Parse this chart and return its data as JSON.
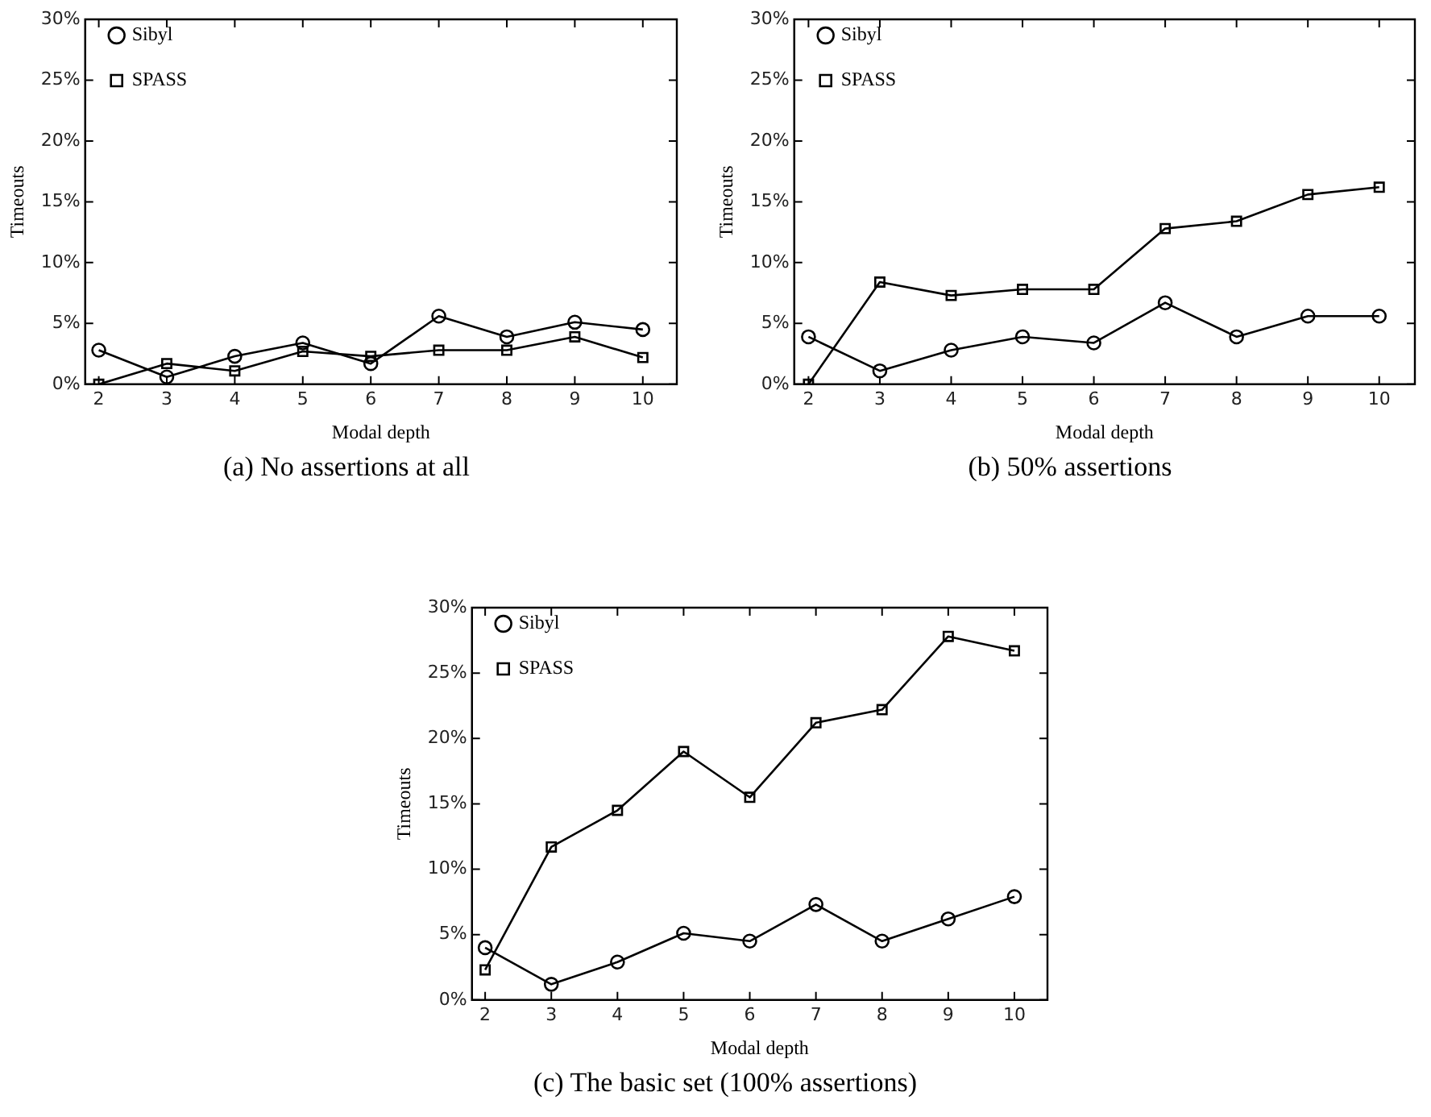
{
  "chart_data": [
    {
      "type": "line",
      "title": "(a) No assertions at all",
      "xlabel": "Modal depth",
      "ylabel": "Timeouts",
      "x": [
        2,
        3,
        4,
        5,
        6,
        7,
        8,
        9,
        10
      ],
      "series": [
        {
          "name": "Sibyl",
          "color": "#000000",
          "marker": "circle",
          "values": [
            2.8,
            0.6,
            2.3,
            3.4,
            1.7,
            5.6,
            3.9,
            5.1,
            4.5
          ]
        },
        {
          "name": "SPASS",
          "color": "#000000",
          "marker": "square",
          "values": [
            0,
            1.7,
            1.1,
            2.7,
            2.3,
            2.8,
            2.8,
            3.9,
            2.2
          ]
        }
      ],
      "xlim": [
        1.8,
        10.5
      ],
      "xticks": [
        2,
        3,
        4,
        5,
        6,
        7,
        8,
        9,
        10
      ],
      "ylim": [
        0,
        30
      ],
      "yticks": [
        {
          "value": 0,
          "label": "0%"
        },
        {
          "value": 5,
          "label": "5%"
        },
        {
          "value": 10,
          "label": "10%"
        },
        {
          "value": 15,
          "label": "15%"
        },
        {
          "value": 20,
          "label": "20%"
        },
        {
          "value": 25,
          "label": "25%"
        },
        {
          "value": 30,
          "label": "30%"
        }
      ],
      "grid": false,
      "legend": "top left"
    },
    {
      "type": "line",
      "title": "(b) 50% assertions",
      "xlabel": "Modal depth",
      "ylabel": "Timeouts",
      "x": [
        2,
        3,
        4,
        5,
        6,
        7,
        8,
        9,
        10
      ],
      "series": [
        {
          "name": "Sibyl",
          "color": "#000000",
          "marker": "circle",
          "values": [
            3.9,
            1.1,
            2.8,
            3.9,
            3.4,
            6.7,
            3.9,
            5.6,
            5.6
          ]
        },
        {
          "name": "SPASS",
          "color": "#000000",
          "marker": "square",
          "values": [
            0,
            8.4,
            7.3,
            7.8,
            7.8,
            12.8,
            13.4,
            15.6,
            16.2
          ]
        }
      ],
      "xlim": [
        1.8,
        10.5
      ],
      "xticks": [
        2,
        3,
        4,
        5,
        6,
        7,
        8,
        9,
        10
      ],
      "ylim": [
        0,
        30
      ],
      "yticks": [
        {
          "value": 0,
          "label": "0%"
        },
        {
          "value": 5,
          "label": "5%"
        },
        {
          "value": 10,
          "label": "10%"
        },
        {
          "value": 15,
          "label": "15%"
        },
        {
          "value": 20,
          "label": "20%"
        },
        {
          "value": 25,
          "label": "25%"
        },
        {
          "value": 30,
          "label": "30%"
        }
      ],
      "grid": false,
      "legend": "top left"
    },
    {
      "type": "line",
      "title": "(c) The basic set (100% assertions)",
      "xlabel": "Modal depth",
      "ylabel": "Timeouts",
      "x": [
        2,
        3,
        4,
        5,
        6,
        7,
        8,
        9,
        10
      ],
      "series": [
        {
          "name": "Sibyl",
          "color": "#000000",
          "marker": "circle",
          "values": [
            4.0,
            1.2,
            2.9,
            5.1,
            4.5,
            7.3,
            4.5,
            6.2,
            7.9
          ]
        },
        {
          "name": "SPASS",
          "color": "#000000",
          "marker": "square",
          "values": [
            2.3,
            11.7,
            14.5,
            19.0,
            15.5,
            21.2,
            22.2,
            27.8,
            26.7
          ]
        }
      ],
      "xlim": [
        1.8,
        10.5
      ],
      "xticks": [
        2,
        3,
        4,
        5,
        6,
        7,
        8,
        9,
        10
      ],
      "ylim": [
        0,
        30
      ],
      "yticks": [
        {
          "value": 0,
          "label": "0%"
        },
        {
          "value": 5,
          "label": "5%"
        },
        {
          "value": 10,
          "label": "10%"
        },
        {
          "value": 15,
          "label": "15%"
        },
        {
          "value": 20,
          "label": "20%"
        },
        {
          "value": 25,
          "label": "25%"
        },
        {
          "value": 30,
          "label": "30%"
        }
      ],
      "grid": false,
      "legend": "top left"
    }
  ]
}
